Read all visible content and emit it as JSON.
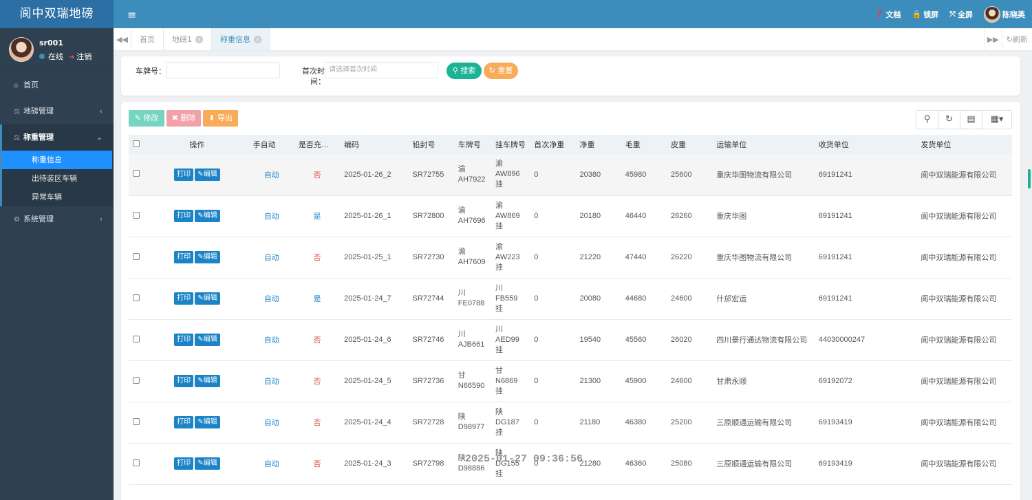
{
  "app": {
    "title": "阆中双瑞地磅"
  },
  "user": {
    "name": "sr001",
    "status": "在线",
    "logout": "注销",
    "display_name": "陈晓英"
  },
  "topbar": {
    "docs": "文档",
    "lock": "锁屏",
    "fullscreen": "全屏"
  },
  "nav": {
    "home": "首页",
    "scale_mgmt": "地磅管理",
    "weigh_mgmt": "称重管理",
    "sub": [
      "称重信息",
      "出待装区车辆",
      "异常车辆"
    ],
    "system": "系统管理"
  },
  "tabs": [
    "首页",
    "地磅1",
    "称重信息"
  ],
  "refresh": "刷新",
  "search": {
    "plate_label": "车牌号：",
    "plate_value": "",
    "time_label_1": "首次时",
    "time_label_2": "间：",
    "time_placeholder": "请选择首次时间",
    "search_btn": "搜索",
    "reset_btn": "重置"
  },
  "toolbar": {
    "edit": "修改",
    "delete": "删除",
    "export": "导出"
  },
  "table": {
    "headers": [
      "操作",
      "手自动",
      "是否充…",
      "编码",
      "铅封号",
      "车牌号",
      "挂车牌号",
      "首次净重",
      "净重",
      "毛重",
      "皮重",
      "运输单位",
      "收货单位",
      "发货单位"
    ],
    "print_label": "打印",
    "edit_label": "编辑",
    "rows": [
      {
        "mode": "自动",
        "charged": "否",
        "code": "2025-01-26_2",
        "seal": "SR72755",
        "plate1": "渝",
        "plate2": "AH7922",
        "trailer1": "渝",
        "trailer2": "AW896",
        "trailer3": "挂",
        "first_net": "0",
        "net": "20380",
        "gross": "45980",
        "tare": "25600",
        "carrier": "重庆华图物流有限公司",
        "receiver": "69191241",
        "shipper": "阆中双瑞能源有限公司"
      },
      {
        "mode": "自动",
        "charged": "是",
        "code": "2025-01-26_1",
        "seal": "SR72800",
        "plate1": "渝",
        "plate2": "AH7696",
        "trailer1": "渝",
        "trailer2": "AW869",
        "trailer3": "挂",
        "first_net": "0",
        "net": "20180",
        "gross": "46440",
        "tare": "26260",
        "carrier": "重庆华图",
        "receiver": "69191241",
        "shipper": "阆中双瑞能源有限公司"
      },
      {
        "mode": "自动",
        "charged": "否",
        "code": "2025-01-25_1",
        "seal": "SR72730",
        "plate1": "渝",
        "plate2": "AH7609",
        "trailer1": "渝",
        "trailer2": "AW223",
        "trailer3": "挂",
        "first_net": "0",
        "net": "21220",
        "gross": "47440",
        "tare": "26220",
        "carrier": "重庆华图物流有限公司",
        "receiver": "69191241",
        "shipper": "阆中双瑞能源有限公司"
      },
      {
        "mode": "自动",
        "charged": "是",
        "code": "2025-01-24_7",
        "seal": "SR72744",
        "plate1": "川",
        "plate2": "FE0788",
        "trailer1": "川",
        "trailer2": "FB559",
        "trailer3": "挂",
        "first_net": "0",
        "net": "20080",
        "gross": "44680",
        "tare": "24600",
        "carrier": "什邡宏运",
        "receiver": "69191241",
        "shipper": "阆中双瑞能源有限公司"
      },
      {
        "mode": "自动",
        "charged": "否",
        "code": "2025-01-24_6",
        "seal": "SR72746",
        "plate1": "川",
        "plate2": "AJB661",
        "trailer1": "川",
        "trailer2": "AED99",
        "trailer3": "挂",
        "first_net": "0",
        "net": "19540",
        "gross": "45560",
        "tare": "26020",
        "carrier": "四川景行通达物流有限公司",
        "receiver": "44030000247",
        "shipper": "阆中双瑞能源有限公司"
      },
      {
        "mode": "自动",
        "charged": "否",
        "code": "2025-01-24_5",
        "seal": "SR72736",
        "plate1": "甘",
        "plate2": "N66590",
        "trailer1": "甘",
        "trailer2": "N6869",
        "trailer3": "挂",
        "first_net": "0",
        "net": "21300",
        "gross": "45900",
        "tare": "24600",
        "carrier": "甘肃永顺",
        "receiver": "69192072",
        "shipper": "阆中双瑞能源有限公司"
      },
      {
        "mode": "自动",
        "charged": "否",
        "code": "2025-01-24_4",
        "seal": "SR72728",
        "plate1": "陕",
        "plate2": "D98977",
        "trailer1": "陕",
        "trailer2": "DG187",
        "trailer3": "挂",
        "first_net": "0",
        "net": "21180",
        "gross": "46380",
        "tare": "25200",
        "carrier": "三原顺通运输有限公司",
        "receiver": "69193419",
        "shipper": "阆中双瑞能源有限公司"
      },
      {
        "mode": "自动",
        "charged": "否",
        "code": "2025-01-24_3",
        "seal": "SR72798",
        "plate1": "陕",
        "plate2": "D98886",
        "trailer1": "陕",
        "trailer2": "DG155",
        "trailer3": "挂",
        "first_net": "0",
        "net": "21280",
        "gross": "46360",
        "tare": "25080",
        "carrier": "三原顺通运输有限公司",
        "receiver": "69193419",
        "shipper": "阆中双瑞能源有限公司"
      }
    ]
  },
  "overlay_timestamp": "2025-01-27 09:36:56",
  "colors": {
    "sidebar": "#2f4050",
    "topbar": "#3c8dbc",
    "primary": "#1c84c6",
    "green": "#1ab394",
    "orange": "#f8ac59",
    "red": "#ed5565"
  }
}
